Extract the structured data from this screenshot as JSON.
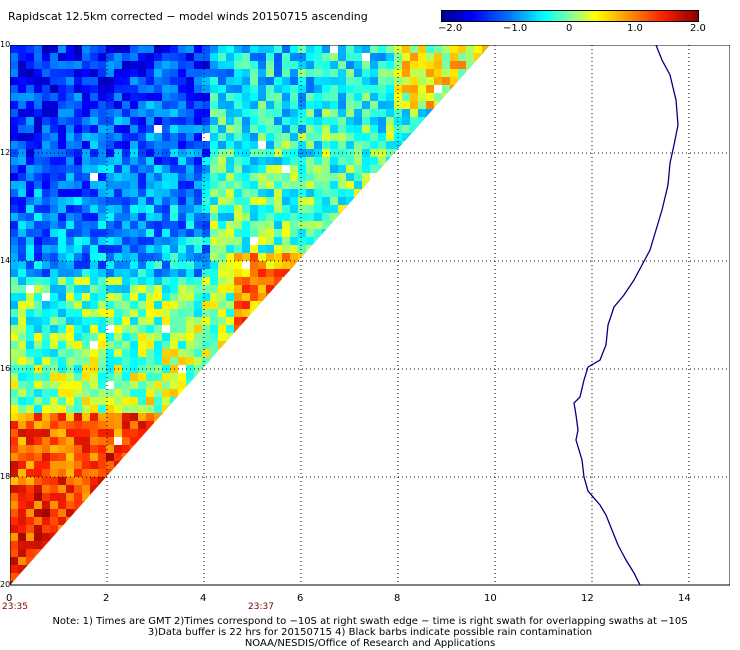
{
  "header": {
    "title": "Rapidscat 12.5km corrected − model winds 20150715 ascending"
  },
  "colorbar": {
    "ticks": [
      "−2.0",
      "−1.0",
      "0",
      "1.0",
      "2.0"
    ],
    "range": [
      -2.0,
      2.0
    ]
  },
  "map": {
    "lat_labels": [
      "10",
      "12",
      "14",
      "16",
      "18",
      "20"
    ],
    "lon_labels": [
      "0",
      "2",
      "4",
      "6",
      "8",
      "10",
      "12",
      "14"
    ],
    "time_labels": [
      "23:35",
      "23:37"
    ],
    "grid": "dotted"
  },
  "footer": {
    "line1": "Note: 1) Times are GMT 2)Times correspond to −10S at right swath edge − time is right swath for overlapping swaths at −10S",
    "line2": "3)Data buffer is 22 hrs for 20150715 4) Black barbs indicate possible rain contamination",
    "line3": "NOAA/NESDIS/Office of Research and Applications"
  },
  "colors": {
    "coastline": "#000080",
    "grid": "#000000",
    "time_label": "#800000"
  }
}
